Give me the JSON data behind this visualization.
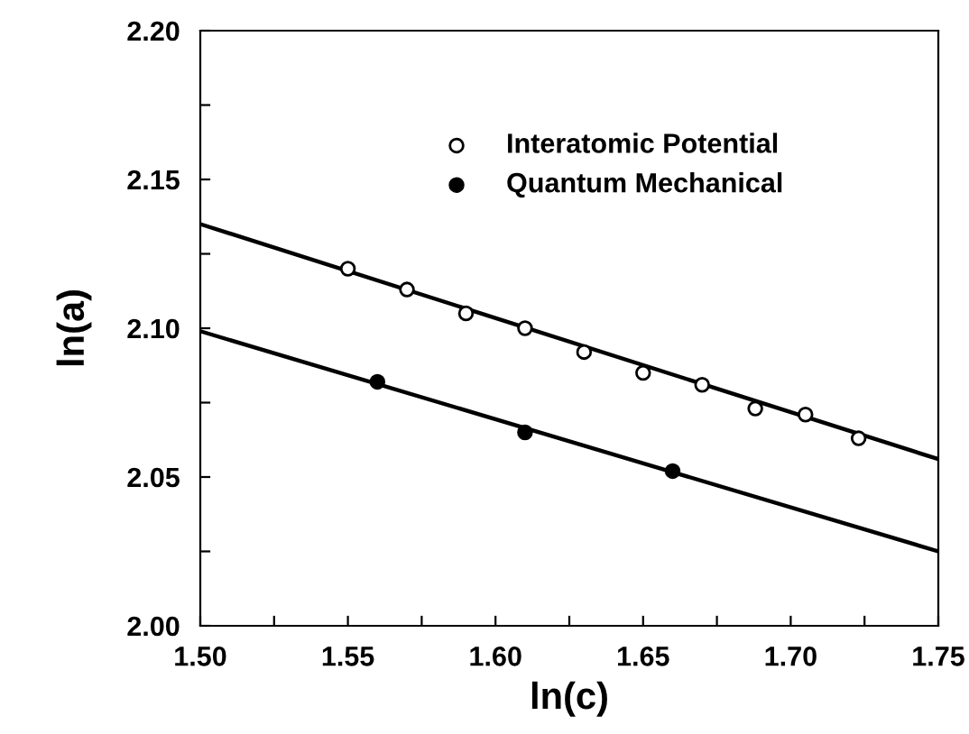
{
  "chart_data": {
    "type": "scatter",
    "xlabel": "ln(c)",
    "ylabel": "ln(a)",
    "xlim": [
      1.5,
      1.75
    ],
    "ylim": [
      2.0,
      2.2
    ],
    "xticks": [
      {
        "value": 1.5,
        "label": "1.50"
      },
      {
        "value": 1.525,
        "label": null
      },
      {
        "value": 1.55,
        "label": "1.55"
      },
      {
        "value": 1.575,
        "label": null
      },
      {
        "value": 1.6,
        "label": "1.60"
      },
      {
        "value": 1.625,
        "label": null
      },
      {
        "value": 1.65,
        "label": "1.65"
      },
      {
        "value": 1.675,
        "label": null
      },
      {
        "value": 1.7,
        "label": "1.70"
      },
      {
        "value": 1.725,
        "label": null
      },
      {
        "value": 1.75,
        "label": "1.75"
      }
    ],
    "yticks": [
      {
        "value": 2.0,
        "label": "2.00"
      },
      {
        "value": 2.025,
        "label": null
      },
      {
        "value": 2.05,
        "label": "2.05"
      },
      {
        "value": 2.075,
        "label": null
      },
      {
        "value": 2.1,
        "label": "2.10"
      },
      {
        "value": 2.125,
        "label": null
      },
      {
        "value": 2.15,
        "label": "2.15"
      },
      {
        "value": 2.175,
        "label": null
      },
      {
        "value": 2.2,
        "label": "2.20"
      }
    ],
    "grid": false,
    "legend": "top",
    "series": [
      {
        "name": "Interatomic Potential",
        "marker": "circle",
        "color": "#ffffff",
        "x": [
          1.55,
          1.57,
          1.59,
          1.61,
          1.63,
          1.65,
          1.67,
          1.688,
          1.705,
          1.723
        ],
        "values": [
          2.12,
          2.113,
          2.105,
          2.1,
          2.092,
          2.085,
          2.081,
          2.073,
          2.071,
          2.063
        ]
      },
      {
        "name": "Quantum Mechanical",
        "marker": "circle",
        "color": "#000000",
        "x": [
          1.56,
          1.61,
          1.66
        ],
        "values": [
          2.082,
          2.065,
          2.052
        ]
      },
      {
        "type": "line",
        "color": "#000000",
        "line_style": "solid",
        "x": [
          1.5,
          1.75
        ],
        "values": [
          2.135,
          2.056
        ]
      },
      {
        "type": "line",
        "color": "#000000",
        "line_style": "solid",
        "x": [
          1.5,
          1.75
        ],
        "values": [
          2.099,
          2.025
        ]
      }
    ]
  }
}
